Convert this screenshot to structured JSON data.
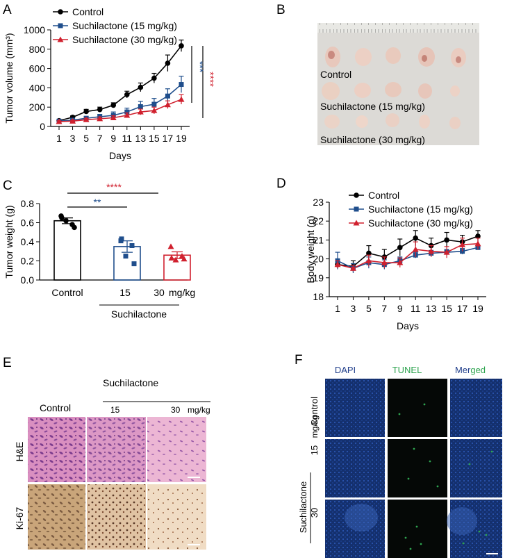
{
  "panels": {
    "a": "A",
    "b": "B",
    "c": "C",
    "d": "D",
    "e": "E",
    "f": "F"
  },
  "colors": {
    "control": "#000000",
    "low": "#1f4e8c",
    "high": "#d0202e",
    "tunel": "#2ea44f",
    "dapi": "#1f3d8a"
  },
  "chart_data": [
    {
      "id": "A",
      "type": "line",
      "ylabel": "Tumor volume (mm³)",
      "xlabel": "Days",
      "x": [
        1,
        3,
        5,
        7,
        9,
        11,
        13,
        15,
        17,
        19
      ],
      "ylim": [
        0,
        1000
      ],
      "yticks": [
        0,
        200,
        400,
        600,
        800,
        1000
      ],
      "series": [
        {
          "name": "Control",
          "values": [
            60,
            95,
            155,
            175,
            220,
            330,
            405,
            500,
            655,
            835
          ],
          "err": [
            10,
            15,
            22,
            25,
            25,
            35,
            45,
            50,
            85,
            60
          ]
        },
        {
          "name": "Suchilactone (15 mg/kg)",
          "values": [
            55,
            65,
            85,
            100,
            115,
            150,
            205,
            230,
            315,
            435
          ],
          "err": [
            10,
            12,
            18,
            25,
            35,
            40,
            55,
            60,
            75,
            85
          ]
        },
        {
          "name": "Suchilactone (30 mg/kg)",
          "values": [
            50,
            55,
            70,
            80,
            90,
            115,
            150,
            165,
            225,
            280
          ],
          "err": [
            8,
            10,
            15,
            18,
            20,
            25,
            30,
            35,
            40,
            50
          ]
        }
      ],
      "significance": [
        {
          "text": "***",
          "color": "low"
        },
        {
          "text": "****",
          "color": "high"
        }
      ]
    },
    {
      "id": "C",
      "type": "bar",
      "ylabel": "Tumor weight (g)",
      "categories": [
        "Control",
        "15",
        "30"
      ],
      "unit": "mg/kg",
      "group_label": "Suchilactone",
      "ylim": [
        0,
        0.8
      ],
      "yticks": [
        "0.0",
        "0.2",
        "0.4",
        "0.6",
        "0.8"
      ],
      "values": [
        0.62,
        0.35,
        0.26
      ],
      "err": [
        0.03,
        0.06,
        0.035
      ],
      "points": [
        [
          0.67,
          0.58,
          0.62,
          0.55,
          0.65
        ],
        [
          0.41,
          0.36,
          0.25,
          0.17,
          0.43
        ],
        [
          0.35,
          0.25,
          0.21,
          0.22,
          0.23
        ]
      ],
      "significance": [
        {
          "text": "**",
          "color": "low",
          "from": 0,
          "to": 1
        },
        {
          "text": "****",
          "color": "high",
          "from": 0,
          "to": 2
        }
      ]
    },
    {
      "id": "D",
      "type": "line",
      "ylabel": "Body weight (g)",
      "xlabel": "Days",
      "x": [
        1,
        3,
        5,
        7,
        9,
        11,
        13,
        15,
        17,
        19
      ],
      "ylim": [
        18,
        23
      ],
      "yticks": [
        18,
        19,
        20,
        21,
        22,
        23
      ],
      "series": [
        {
          "name": "Control",
          "values": [
            19.7,
            19.6,
            20.3,
            20.1,
            20.6,
            21.1,
            20.7,
            21.0,
            20.9,
            21.2
          ],
          "err": [
            0.2,
            0.3,
            0.4,
            0.4,
            0.45,
            0.4,
            0.4,
            0.4,
            0.35,
            0.3
          ]
        },
        {
          "name": "Suchilactone (15 mg/kg)",
          "values": [
            19.9,
            19.5,
            19.8,
            19.7,
            19.9,
            20.2,
            20.3,
            20.35,
            20.4,
            20.6
          ],
          "err": [
            0.45,
            0.25,
            0.3,
            0.25,
            0.2,
            0.15,
            0.15,
            0.15,
            0.15,
            0.1
          ]
        },
        {
          "name": "Suchilactone (30 mg/kg)",
          "values": [
            19.7,
            19.5,
            19.9,
            19.8,
            19.8,
            20.5,
            20.4,
            20.35,
            20.75,
            20.8
          ],
          "err": [
            0.2,
            0.15,
            0.3,
            0.3,
            0.25,
            0.4,
            0.3,
            0.3,
            0.35,
            0.3
          ]
        }
      ]
    }
  ],
  "panel_b": {
    "rows": [
      "Control",
      "Suchilactone (15 mg/kg)",
      "Suchilactone (30 mg/kg)"
    ]
  },
  "panel_e": {
    "group": "Suchilactone",
    "columns": [
      "Control",
      "15",
      "30"
    ],
    "unit": "mg/kg",
    "rows": [
      "H&E",
      "Ki-67"
    ]
  },
  "panel_f": {
    "columns": [
      "DAPI",
      "TUNEL",
      "Merged"
    ],
    "merged_a": "Mer",
    "merged_b": "ged",
    "row_control": "Control",
    "group": "Suchilactone",
    "dose_15": "15",
    "unit": "mg/kg",
    "dose_30": "30"
  }
}
